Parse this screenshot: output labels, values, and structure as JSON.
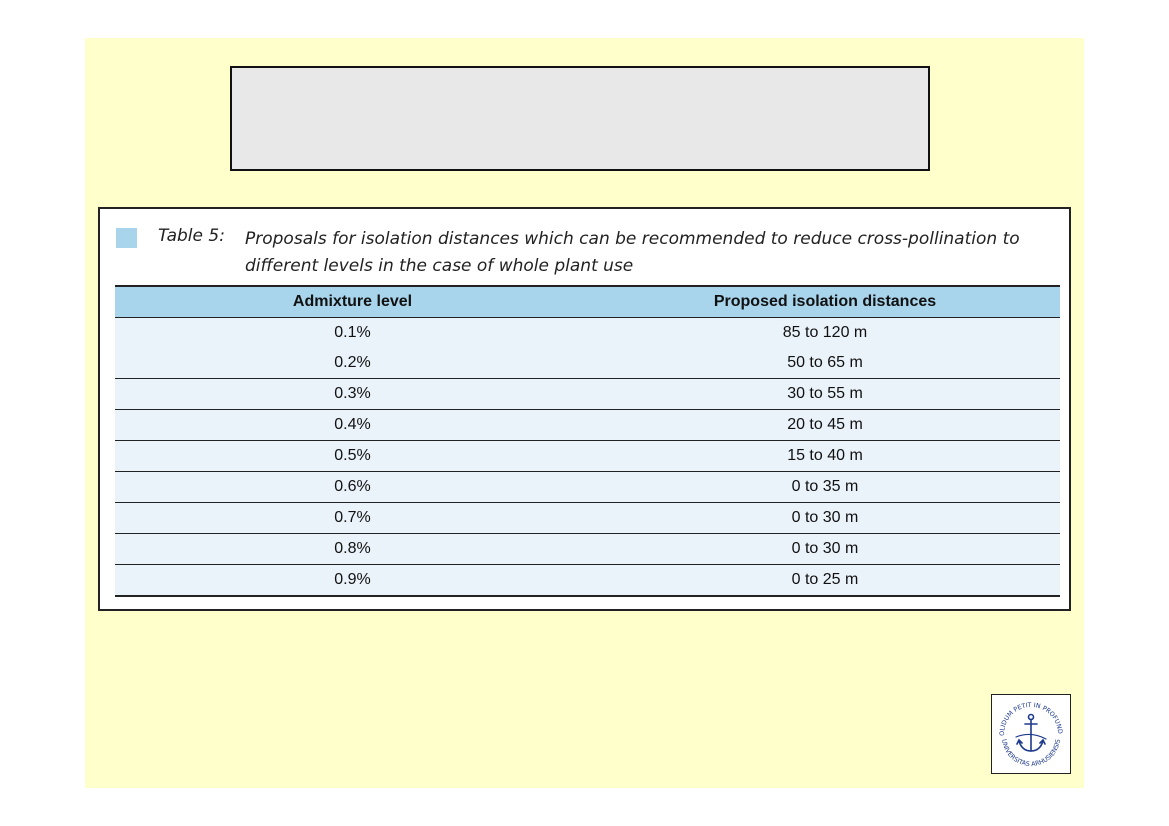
{
  "title_box": {
    "text": ""
  },
  "table": {
    "caption_label": "Table 5:",
    "caption": "Proposals for isolation distances which can be recommended to reduce cross-pollination to different levels in the case of whole plant use",
    "headers": [
      "Admixture level",
      "Proposed isolation distances"
    ],
    "rows": [
      [
        "0.1%",
        "85 to 120 m"
      ],
      [
        "0.2%",
        "50 to 65 m"
      ],
      [
        "0.3%",
        "30 to 55 m"
      ],
      [
        "0.4%",
        "20 to 45 m"
      ],
      [
        "0.5%",
        "15 to 40 m"
      ],
      [
        "0.6%",
        "0 to 35 m"
      ],
      [
        "0.7%",
        "0 to 30 m"
      ],
      [
        "0.8%",
        "0 to 30 m"
      ],
      [
        "0.9%",
        "0 to 25 m"
      ]
    ]
  },
  "seal": {
    "motto": "SOLIDUM PETIT IN PROFUNDIS",
    "name": "UNIVERSITAS ARHUSIENSIS"
  },
  "colors": {
    "slide_background": "#ffffcc",
    "title_box_fill": "#e8e8e8",
    "header_fill": "#a8d4ec",
    "row_fill": "#eaf2fa"
  }
}
